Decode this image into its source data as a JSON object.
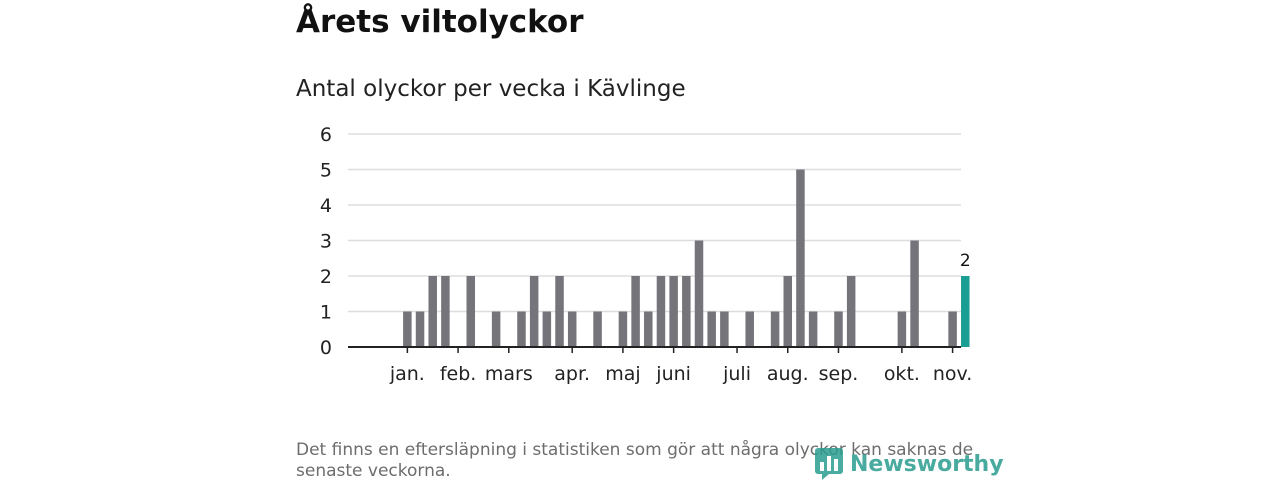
{
  "title": "Årets viltolyckor",
  "subtitle": "Antal olyckor per vecka i Kävlinge",
  "footnote": "Det finns en eftersläpning i statistiken som gör att några olyckor kan saknas de senaste veckorna.",
  "brand": {
    "name": "Newsworthy",
    "icon": "newsworthy-logo-icon",
    "color": "#2a9d8f"
  },
  "colors": {
    "bar": "#75747a",
    "highlight": "#1a9e94",
    "grid": "#dddddd",
    "axis": "#222222"
  },
  "chart_data": {
    "type": "bar",
    "title": "Antal olyckor per vecka i Kävlinge",
    "xlabel": "",
    "ylabel": "",
    "ylim": [
      0,
      6
    ],
    "yticks": [
      0,
      1,
      2,
      3,
      4,
      5,
      6
    ],
    "grid": true,
    "legend": "none",
    "x": [
      1,
      2,
      3,
      4,
      5,
      6,
      7,
      8,
      9,
      10,
      11,
      12,
      13,
      14,
      15,
      16,
      17,
      18,
      19,
      20,
      21,
      22,
      23,
      24,
      25,
      26,
      27,
      28,
      29,
      30,
      31,
      32,
      33,
      34,
      35,
      36,
      37,
      38,
      39,
      40,
      41,
      42,
      43,
      44,
      45,
      46,
      47
    ],
    "values": [
      0,
      0,
      1,
      1,
      2,
      2,
      0,
      2,
      0,
      1,
      0,
      1,
      2,
      1,
      2,
      1,
      0,
      1,
      0,
      1,
      2,
      1,
      2,
      2,
      2,
      3,
      1,
      1,
      0,
      1,
      0,
      1,
      2,
      5,
      1,
      0,
      1,
      2,
      0,
      0,
      0,
      1,
      3,
      0,
      0,
      1,
      2
    ],
    "highlight_index": 46,
    "highlight_label": "2",
    "month_ticks": [
      {
        "label": "jan.",
        "x": 3
      },
      {
        "label": "feb.",
        "x": 7
      },
      {
        "label": "mars",
        "x": 11
      },
      {
        "label": "apr.",
        "x": 16
      },
      {
        "label": "maj",
        "x": 20
      },
      {
        "label": "juni",
        "x": 24
      },
      {
        "label": "juli",
        "x": 29
      },
      {
        "label": "aug.",
        "x": 33
      },
      {
        "label": "sep.",
        "x": 37
      },
      {
        "label": "okt.",
        "x": 42
      },
      {
        "label": "nov.",
        "x": 46
      }
    ]
  }
}
